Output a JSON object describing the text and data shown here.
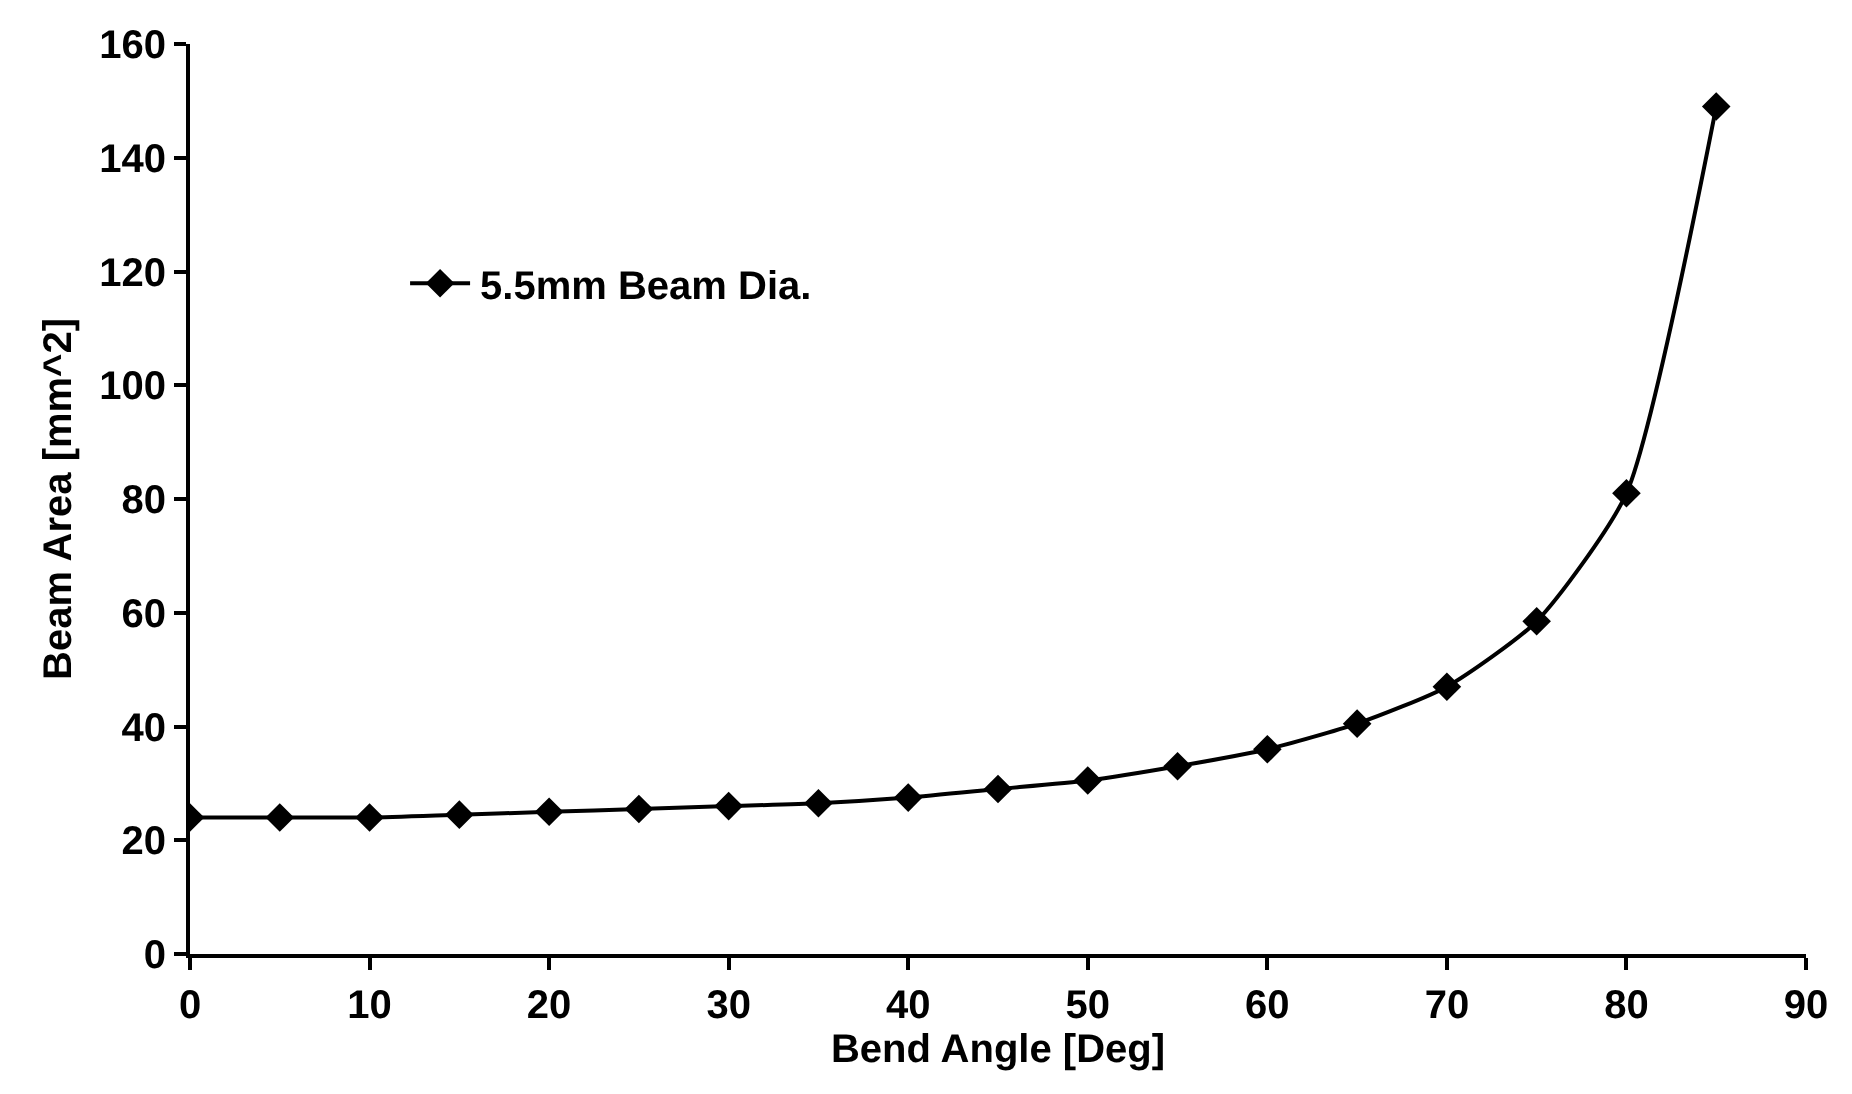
{
  "chart_data": {
    "type": "line",
    "xlabel": "Bend Angle [Deg]",
    "ylabel": "Beam Area [mm^2]",
    "x": [
      0,
      5,
      10,
      15,
      20,
      25,
      30,
      35,
      40,
      45,
      50,
      55,
      60,
      65,
      70,
      75,
      80,
      85
    ],
    "series": [
      {
        "name": "5.5mm Beam Dia.",
        "color": "#000000",
        "values": [
          24,
          24,
          24,
          24.5,
          25,
          25.5,
          26,
          26.5,
          27.5,
          29,
          30.5,
          33,
          36,
          40.5,
          47,
          58.5,
          81,
          149
        ]
      }
    ],
    "xlim": [
      0,
      90
    ],
    "xticks": [
      0,
      10,
      20,
      30,
      40,
      50,
      60,
      70,
      80,
      90
    ],
    "ylim": [
      0,
      160
    ],
    "yticks": [
      0,
      20,
      40,
      60,
      80,
      100,
      120,
      140,
      160
    ],
    "grid": false,
    "legend": "top left",
    "marker": "diamond",
    "line_style": "solid"
  }
}
